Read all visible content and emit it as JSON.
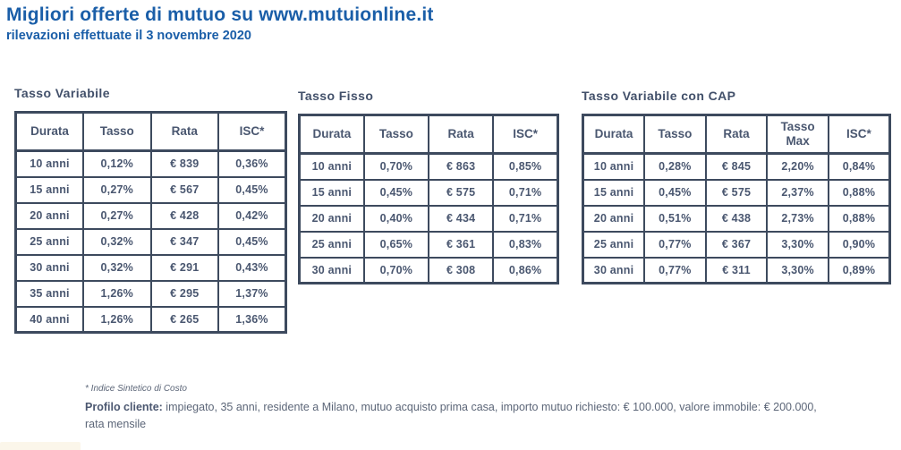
{
  "header": {
    "title": "Migliori offerte di mutuo su www.mutuionline.it",
    "subtitle": "rilevazioni effettuate il 3 novembre 2020"
  },
  "tables": [
    {
      "caption": "Tasso Variabile",
      "headers": [
        "Durata",
        "Tasso",
        "Rata",
        "ISC*"
      ],
      "rows": [
        [
          "10 anni",
          "0,12%",
          "€ 839",
          "0,36%"
        ],
        [
          "15 anni",
          "0,27%",
          "€ 567",
          "0,45%"
        ],
        [
          "20 anni",
          "0,27%",
          "€ 428",
          "0,42%"
        ],
        [
          "25 anni",
          "0,32%",
          "€ 347",
          "0,45%"
        ],
        [
          "30 anni",
          "0,32%",
          "€ 291",
          "0,43%"
        ],
        [
          "35 anni",
          "1,26%",
          "€ 295",
          "1,37%"
        ],
        [
          "40 anni",
          "1,26%",
          "€ 265",
          "1,36%"
        ]
      ]
    },
    {
      "caption": "Tasso Fisso",
      "headers": [
        "Durata",
        "Tasso",
        "Rata",
        "ISC*"
      ],
      "rows": [
        [
          "10 anni",
          "0,70%",
          "€ 863",
          "0,85%"
        ],
        [
          "15 anni",
          "0,45%",
          "€ 575",
          "0,71%"
        ],
        [
          "20 anni",
          "0,40%",
          "€ 434",
          "0,71%"
        ],
        [
          "25 anni",
          "0,65%",
          "€ 361",
          "0,83%"
        ],
        [
          "30 anni",
          "0,70%",
          "€ 308",
          "0,86%"
        ]
      ]
    },
    {
      "caption": "Tasso Variabile con CAP",
      "headers": [
        "Durata",
        "Tasso",
        "Rata",
        "Tasso Max",
        "ISC*"
      ],
      "rows": [
        [
          "10 anni",
          "0,28%",
          "€ 845",
          "2,20%",
          "0,84%"
        ],
        [
          "15 anni",
          "0,45%",
          "€ 575",
          "2,37%",
          "0,88%"
        ],
        [
          "20 anni",
          "0,51%",
          "€ 438",
          "2,73%",
          "0,88%"
        ],
        [
          "25 anni",
          "0,77%",
          "€ 367",
          "3,30%",
          "0,90%"
        ],
        [
          "30 anni",
          "0,77%",
          "€ 311",
          "3,30%",
          "0,89%"
        ]
      ]
    }
  ],
  "footer": {
    "footnote": "* Indice Sintetico di Costo",
    "profile_label": "Profilo cliente:",
    "profile_text": " impiegato, 35 anni, residente a Milano, mutuo acquisto prima casa, importo mutuo richiesto: € 100.000, valore immobile: € 200.000,",
    "profile_line2": "rata mensile"
  },
  "colors": {
    "title_blue": "#1A5EA8",
    "table_border": "#3D4A5E",
    "cell_text": "#4A5770",
    "footer_text": "#5C6678"
  }
}
